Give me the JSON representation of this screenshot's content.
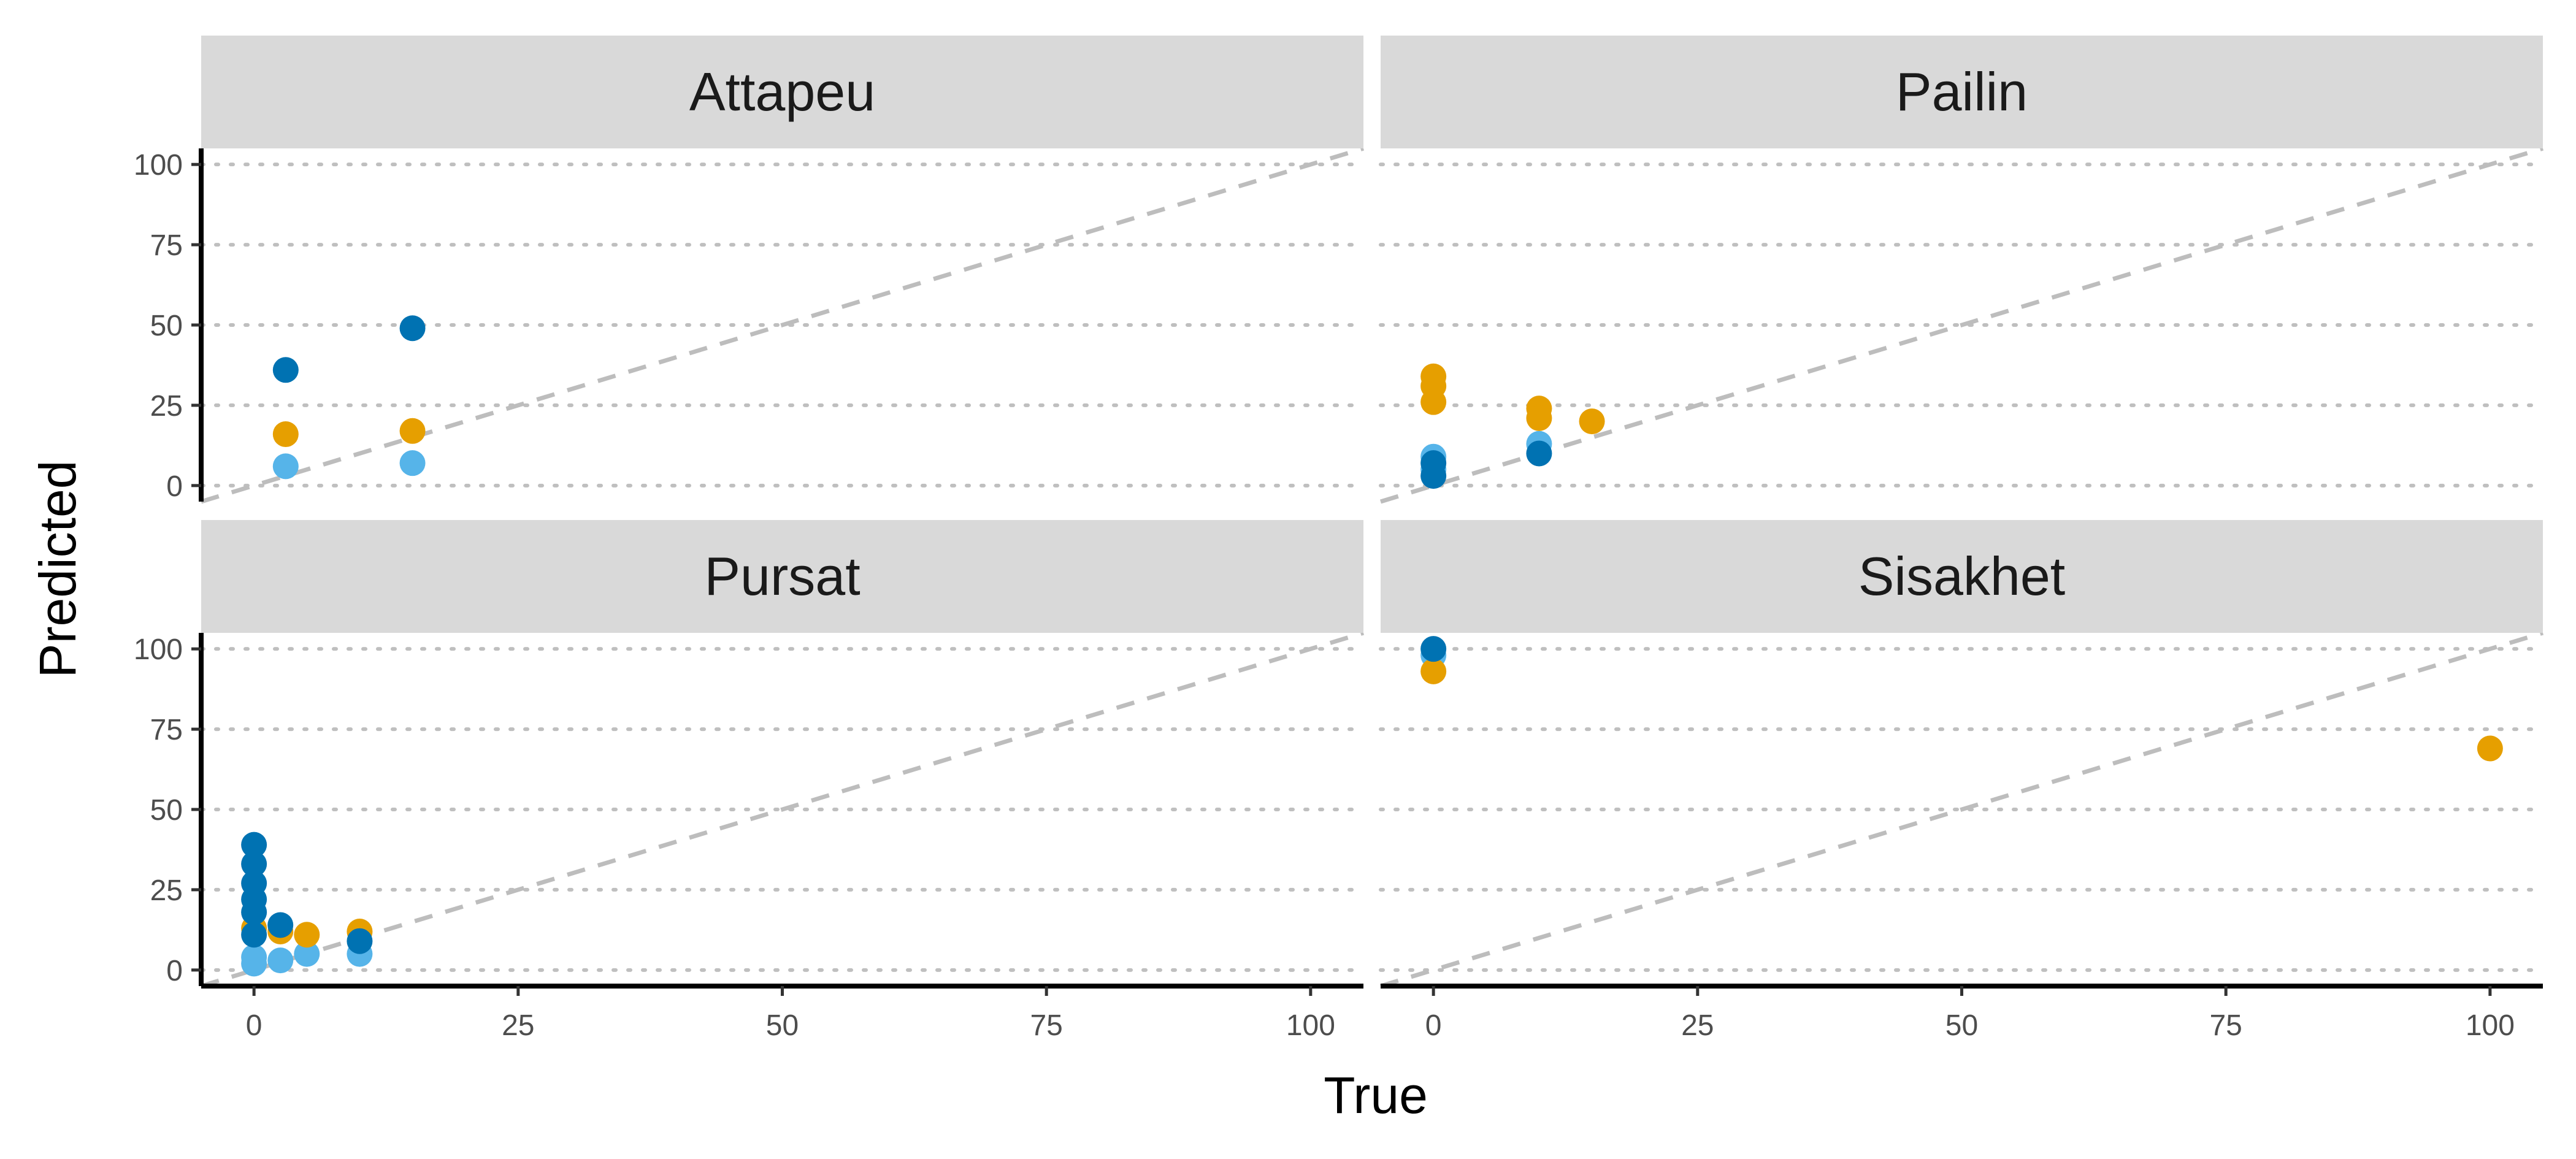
{
  "chart_data": {
    "type": "scatter",
    "title": "",
    "xlabel": "True",
    "ylabel": "Predicted",
    "xlim": [
      -5,
      105
    ],
    "ylim": [
      -5,
      105
    ],
    "x_ticks": [
      0,
      25,
      50,
      75,
      100
    ],
    "y_ticks": [
      0,
      25,
      50,
      75,
      100
    ],
    "y_grid": "dotted",
    "reference_line": "y = x (dashed)",
    "colors": {
      "dark_blue": "#0072b2",
      "light_blue": "#56b4e9",
      "orange": "#e69f00",
      "strip_bg": "#d9d9d9",
      "grid": "#bfbfbf",
      "reference_line": "#bdbdbd"
    },
    "panels": [
      {
        "name": "Attapeu",
        "points": {
          "dark_blue": [
            [
              3,
              36
            ],
            [
              15,
              49
            ]
          ],
          "orange": [
            [
              3,
              16
            ],
            [
              15,
              17
            ]
          ],
          "light_blue": [
            [
              3,
              6
            ],
            [
              15,
              7
            ]
          ]
        }
      },
      {
        "name": "Pailin",
        "points": {
          "orange": [
            [
              0,
              34
            ],
            [
              0,
              31
            ],
            [
              0,
              26
            ],
            [
              10,
              24
            ],
            [
              10,
              21
            ],
            [
              15,
              20
            ]
          ],
          "light_blue": [
            [
              0,
              9
            ],
            [
              10,
              13
            ],
            [
              0,
              5
            ]
          ],
          "dark_blue": [
            [
              0,
              7
            ],
            [
              0,
              3
            ],
            [
              10,
              10
            ]
          ]
        }
      },
      {
        "name": "Pursat",
        "points": {
          "dark_blue": [
            [
              0,
              39
            ],
            [
              0,
              33
            ],
            [
              0,
              27
            ],
            [
              0,
              22
            ],
            [
              0,
              18
            ],
            [
              0,
              11
            ],
            [
              2.5,
              14
            ],
            [
              10,
              9
            ]
          ],
          "orange": [
            [
              0,
              13
            ],
            [
              2.5,
              12
            ],
            [
              5,
              11
            ],
            [
              10,
              12
            ]
          ],
          "light_blue": [
            [
              0,
              4
            ],
            [
              0,
              2
            ],
            [
              2.5,
              3
            ],
            [
              5,
              5
            ],
            [
              10,
              5
            ]
          ]
        }
      },
      {
        "name": "Sisakhet",
        "points": {
          "dark_blue": [
            [
              0,
              100
            ]
          ],
          "light_blue": [
            [
              0,
              98
            ]
          ],
          "orange": [
            [
              0,
              93
            ],
            [
              100,
              69
            ]
          ]
        }
      }
    ]
  }
}
